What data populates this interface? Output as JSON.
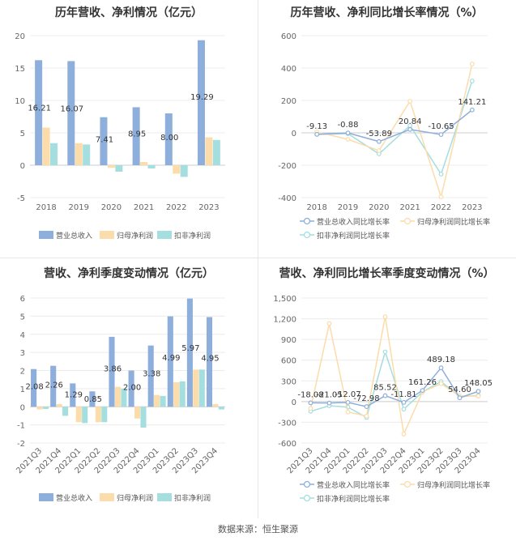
{
  "footer": "数据来源：恒生聚源",
  "chart_data": [
    {
      "type": "bar",
      "title": "历年营收、净利情况（亿元）",
      "categories": [
        "2018",
        "2019",
        "2020",
        "2021",
        "2022",
        "2023"
      ],
      "ylim": [
        -5,
        20
      ],
      "yticks": [
        -5,
        0,
        5,
        10,
        15,
        20
      ],
      "series": [
        {
          "name": "营业总收入",
          "color": "#8eaedb",
          "values": [
            16.21,
            16.07,
            7.41,
            8.95,
            8.0,
            19.29
          ]
        },
        {
          "name": "归母净利润",
          "color": "#fbdcaa",
          "values": [
            5.8,
            3.4,
            -0.4,
            0.5,
            -1.3,
            4.3
          ]
        },
        {
          "name": "扣非净利润",
          "color": "#a4dede",
          "values": [
            3.4,
            3.2,
            -1.0,
            -0.5,
            -1.8,
            3.9
          ]
        }
      ],
      "data_labels": [
        "16.21",
        "16.07",
        "7.41",
        "8.95",
        "8.00",
        "19.29"
      ],
      "legend_position": "bottom"
    },
    {
      "type": "line",
      "title": "历年营收、净利同比增长率情况（%）",
      "categories": [
        "2018",
        "2019",
        "2020",
        "2021",
        "2022",
        "2023"
      ],
      "ylim": [
        -400,
        600
      ],
      "yticks": [
        -400,
        -200,
        0,
        200,
        400,
        600
      ],
      "series": [
        {
          "name": "营业总收入同比增长率",
          "color": "#8eaedb",
          "values": [
            -9.13,
            -0.88,
            -53.89,
            20.84,
            -10.65,
            141.21
          ]
        },
        {
          "name": "归母净利润同比增长率",
          "color": "#fbdcaa",
          "values": [
            5,
            -40,
            -110,
            195,
            -395,
            425
          ]
        },
        {
          "name": "扣非净利润同比增长率",
          "color": "#a4dede",
          "values": [
            -10,
            -5,
            -130,
            45,
            -255,
            320
          ]
        }
      ],
      "data_labels": [
        "-9.13",
        "-0.88",
        "-53.89",
        "20.84",
        "-10.65",
        "141.21"
      ],
      "legend_position": "bottom"
    },
    {
      "type": "bar",
      "title": "营收、净利季度变动情况（亿元）",
      "categories": [
        "2021Q3",
        "2021Q4",
        "2022Q1",
        "2022Q2",
        "2022Q3",
        "2022Q4",
        "2023Q1",
        "2023Q2",
        "2023Q3",
        "2023Q4"
      ],
      "ylim": [
        -2,
        6
      ],
      "yticks": [
        -2,
        -1,
        0,
        1,
        2,
        3,
        4,
        5,
        6
      ],
      "series": [
        {
          "name": "营业总收入",
          "color": "#8eaedb",
          "values": [
            2.08,
            2.26,
            1.29,
            0.85,
            3.86,
            2.0,
            3.38,
            4.99,
            5.97,
            4.95
          ]
        },
        {
          "name": "归母净利润",
          "color": "#fbdcaa",
          "values": [
            -0.15,
            0.15,
            -0.85,
            -0.85,
            1.1,
            -0.65,
            0.65,
            1.35,
            2.05,
            0.15
          ]
        },
        {
          "name": "扣非净利润",
          "color": "#a4dede",
          "values": [
            -0.12,
            -0.5,
            -0.9,
            -0.85,
            1.0,
            -1.15,
            0.6,
            1.4,
            2.05,
            -0.15
          ]
        }
      ],
      "data_labels": [
        "2.08",
        "2.26",
        "1.29",
        "0.85",
        "3.86",
        "2.00",
        "3.38",
        "4.99",
        "5.97",
        "4.95"
      ],
      "legend_position": "bottom"
    },
    {
      "type": "line",
      "title": "营收、净利同比增长率季度变动情况（%）",
      "categories": [
        "2021Q3",
        "2021Q4",
        "2022Q1",
        "2022Q2",
        "2022Q3",
        "2022Q4",
        "2023Q1",
        "2023Q2",
        "2023Q3",
        "2023Q4"
      ],
      "ylim": [
        -600,
        1500
      ],
      "yticks": [
        -600,
        -300,
        0,
        300,
        600,
        900,
        1200,
        1500
      ],
      "series": [
        {
          "name": "营业总收入同比增长率",
          "color": "#8eaedb",
          "values": [
            -18.08,
            -21.05,
            -12.07,
            -72.98,
            85.52,
            -11.81,
            161.26,
            489.18,
            54.6,
            148.05
          ]
        },
        {
          "name": "归母净利润同比增长率",
          "color": "#fbdcaa",
          "values": [
            -100,
            1130,
            -150,
            -210,
            1230,
            -470,
            140,
            260,
            80,
            80
          ]
        },
        {
          "name": "扣非净利润同比增长率",
          "color": "#a4dede",
          "values": [
            -140,
            -60,
            -80,
            -230,
            720,
            -110,
            140,
            290,
            70,
            90
          ]
        }
      ],
      "data_labels": [
        "-18.08",
        "-21.05",
        "-12.07",
        "-72.98",
        "85.52",
        "-11.81",
        "161.26",
        "489.18",
        "54.60",
        "148.05"
      ],
      "legend_position": "bottom"
    }
  ]
}
